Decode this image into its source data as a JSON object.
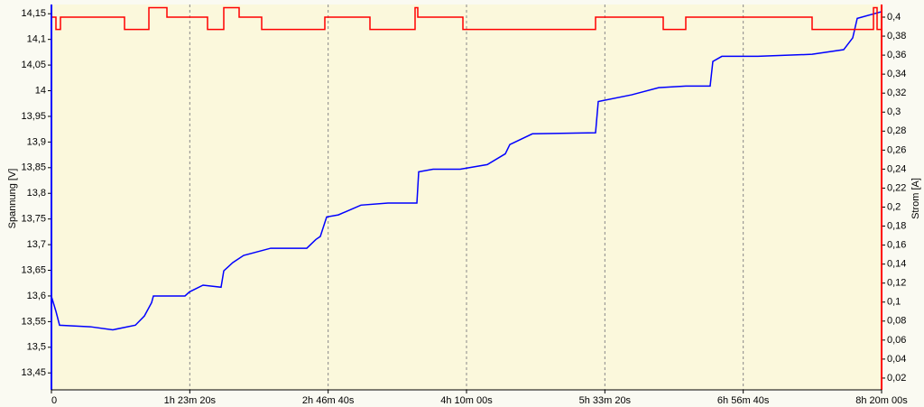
{
  "chart_data": {
    "type": "line",
    "y_label": "Spannung [V]",
    "y2_label": "Strom [A]",
    "xlim": [
      0,
      30000
    ],
    "xticks": [
      0,
      {
        "value": 5000,
        "label": "1h 23m 20s"
      },
      {
        "value": 10000,
        "label": "2h 46m 40s"
      },
      {
        "value": 15000,
        "label": "4h 10m 00s"
      },
      {
        "value": 20000,
        "label": "5h 33m 20s"
      },
      {
        "value": 25000,
        "label": "6h 56m 40s"
      },
      {
        "value": 30000,
        "label": "8h 20m 00s"
      }
    ],
    "ylim": [
      13.417,
      14.168
    ],
    "yticks": [
      {
        "value": 13.45,
        "label": "13,45"
      },
      {
        "value": 13.5,
        "label": "13,5"
      },
      {
        "value": 13.55,
        "label": "13,55"
      },
      {
        "value": 13.6,
        "label": "13,6"
      },
      {
        "value": 13.65,
        "label": "13,65"
      },
      {
        "value": 13.7,
        "label": "13,7"
      },
      {
        "value": 13.75,
        "label": "13,75"
      },
      {
        "value": 13.8,
        "label": "13,8"
      },
      {
        "value": 13.85,
        "label": "13,85"
      },
      {
        "value": 13.9,
        "label": "13,9"
      },
      {
        "value": 13.95,
        "label": "13,95"
      },
      {
        "value": 14,
        "label": "14"
      },
      {
        "value": 14.05,
        "label": "14,05"
      },
      {
        "value": 14.1,
        "label": "14,1"
      },
      {
        "value": 14.15,
        "label": "14,15"
      }
    ],
    "y2lim": [
      0.0076,
      0.4133
    ],
    "y2ticks": [
      {
        "value": 0.02,
        "label": "0,02"
      },
      {
        "value": 0.04,
        "label": "0,04"
      },
      {
        "value": 0.06,
        "label": "0,06"
      },
      {
        "value": 0.08,
        "label": "0,08"
      },
      {
        "value": 0.1,
        "label": "0,1"
      },
      {
        "value": 0.12,
        "label": "0,12"
      },
      {
        "value": 0.14,
        "label": "0,14"
      },
      {
        "value": 0.16,
        "label": "0,16"
      },
      {
        "value": 0.18,
        "label": "0,18"
      },
      {
        "value": 0.2,
        "label": "0,2"
      },
      {
        "value": 0.22,
        "label": "0,22"
      },
      {
        "value": 0.24,
        "label": "0,24"
      },
      {
        "value": 0.26,
        "label": "0,26"
      },
      {
        "value": 0.28,
        "label": "0,28"
      },
      {
        "value": 0.3,
        "label": "0,3"
      },
      {
        "value": 0.32,
        "label": "0,32"
      },
      {
        "value": 0.34,
        "label": "0,34"
      },
      {
        "value": 0.36,
        "label": "0,36"
      },
      {
        "value": 0.38,
        "label": "0,38"
      },
      {
        "value": 0.4,
        "label": "0,4"
      }
    ],
    "grid": true,
    "series": [
      {
        "color": "#0000ff",
        "axis": "y",
        "x": [
          0,
          163,
          293,
          1402,
          2217,
          3033,
          3359,
          3620,
          3685,
          4826,
          4989,
          5478,
          6130,
          6228,
          6554,
          6946,
          7924,
          9228,
          9554,
          9717,
          9946,
          10370,
          11185,
          12163,
          13207,
          13272,
          13793,
          14772,
          15750,
          16402,
          16565,
          17380,
          19663,
          19761,
          20967,
          21946,
          22924,
          23804,
          23902,
          24228,
          25533,
          27489,
          28630,
          28957,
          29120,
          30000
        ],
        "values": [
          13.599,
          13.57,
          13.543,
          13.54,
          13.534,
          13.543,
          13.561,
          13.587,
          13.6,
          13.6,
          13.608,
          13.621,
          13.617,
          13.649,
          13.665,
          13.679,
          13.693,
          13.693,
          13.71,
          13.716,
          13.754,
          13.758,
          13.777,
          13.781,
          13.781,
          13.842,
          13.847,
          13.847,
          13.856,
          13.877,
          13.895,
          13.916,
          13.918,
          13.979,
          13.992,
          14.006,
          14.009,
          14.009,
          14.057,
          14.067,
          14.067,
          14.071,
          14.08,
          14.103,
          14.141,
          14.154
        ]
      },
      {
        "color": "#ff0000",
        "axis": "y2",
        "x": [
          0,
          163,
          163,
          326,
          326,
          2641,
          2641,
          3522,
          3522,
          4174,
          4174,
          5641,
          5641,
          6228,
          6228,
          6783,
          6783,
          7598,
          7598,
          9880,
          9880,
          11511,
          11511,
          13141,
          13141,
          13239,
          13239,
          14870,
          14870,
          19663,
          19663,
          22109,
          22109,
          22924,
          22924,
          27489,
          27489,
          29707,
          29707,
          29837,
          29837,
          30000
        ],
        "values": [
          0.4,
          0.4,
          0.387,
          0.387,
          0.4,
          0.4,
          0.387,
          0.387,
          0.41,
          0.41,
          0.4,
          0.4,
          0.387,
          0.387,
          0.41,
          0.41,
          0.4,
          0.4,
          0.387,
          0.387,
          0.4,
          0.4,
          0.387,
          0.387,
          0.41,
          0.41,
          0.4,
          0.4,
          0.387,
          0.387,
          0.4,
          0.4,
          0.387,
          0.387,
          0.4,
          0.4,
          0.387,
          0.387,
          0.41,
          0.41,
          0.387,
          0.387
        ]
      }
    ]
  }
}
